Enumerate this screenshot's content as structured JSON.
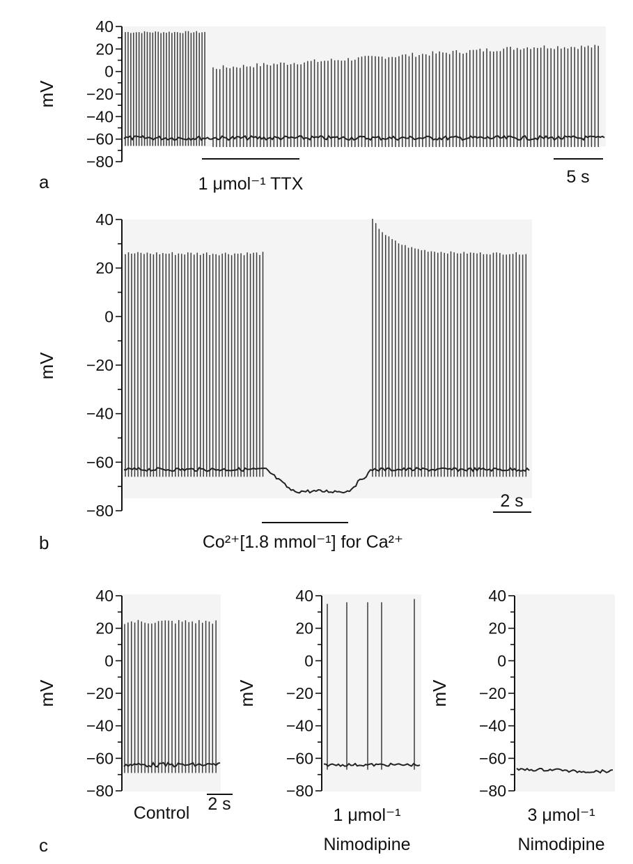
{
  "chart_data": [
    {
      "panel": "a",
      "type": "line",
      "ylabel": "mV",
      "yticks": [
        40,
        20,
        0,
        -20,
        -40,
        -60,
        -80
      ],
      "ylim": [
        -80,
        40
      ],
      "grid": false,
      "baseline_mV": -59,
      "spikes": {
        "pre_drug": {
          "count": 30,
          "peak_mV": 35
        },
        "post_drug": {
          "count": 115,
          "peak_start_mV": 3,
          "peak_end_mV": 22
        }
      },
      "annotations": [
        {
          "id": "drug",
          "text": "1 μmol⁻¹ TTX"
        },
        {
          "id": "scale",
          "text": "5 s"
        }
      ]
    },
    {
      "panel": "b",
      "type": "line",
      "ylabel": "mV",
      "yticks": [
        40,
        20,
        0,
        -20,
        -40,
        -60,
        -80
      ],
      "ylim": [
        -80,
        40
      ],
      "grid": false,
      "baseline_mV": -63,
      "spikes": {
        "pre_drug": {
          "count": 45,
          "peak_mV": 26
        },
        "during_drug": {
          "count": 0,
          "membrane_mV": -72
        },
        "post_drug": {
          "count": 48,
          "peak_start_mV": 40,
          "peak_end_mV": 26
        }
      },
      "annotations": [
        {
          "id": "drug",
          "text": "Co²⁺[1.8 mmol⁻¹] for Ca²⁺"
        },
        {
          "id": "scale",
          "text": "2 s"
        }
      ]
    },
    {
      "panel": "c1",
      "type": "line",
      "ylabel": "mV",
      "yticks": [
        40,
        20,
        0,
        -20,
        -40,
        -60,
        -80
      ],
      "ylim": [
        -80,
        40
      ],
      "grid": false,
      "baseline_mV": -64,
      "spikes": {
        "count": 28,
        "peak_mV": 24
      },
      "annotations": [
        {
          "id": "condition",
          "text": "Control"
        },
        {
          "id": "scale",
          "text": "2 s"
        }
      ]
    },
    {
      "panel": "c2",
      "type": "line",
      "ylabel": "mV",
      "yticks": [
        40,
        20,
        0,
        -20,
        -40,
        -60,
        -80
      ],
      "ylim": [
        -80,
        40
      ],
      "grid": false,
      "baseline_mV": -64,
      "spikes": {
        "count": 5,
        "peak_mV": 36
      },
      "annotations": [
        {
          "id": "condition_line1",
          "text": "1 μmol⁻¹"
        },
        {
          "id": "condition_line2",
          "text": "Nimodipine"
        }
      ]
    },
    {
      "panel": "c3",
      "type": "line",
      "ylabel": "mV",
      "yticks": [
        40,
        20,
        0,
        -20,
        -40,
        -60,
        -80
      ],
      "ylim": [
        -80,
        40
      ],
      "grid": false,
      "baseline_mV": -67,
      "spikes": {
        "count": 0
      },
      "annotations": [
        {
          "id": "condition_line1",
          "text": "3 μmol⁻¹"
        },
        {
          "id": "condition_line2",
          "text": "Nimodipine"
        }
      ]
    }
  ],
  "panel_letters": {
    "a": "a",
    "b": "b",
    "c": "c"
  }
}
